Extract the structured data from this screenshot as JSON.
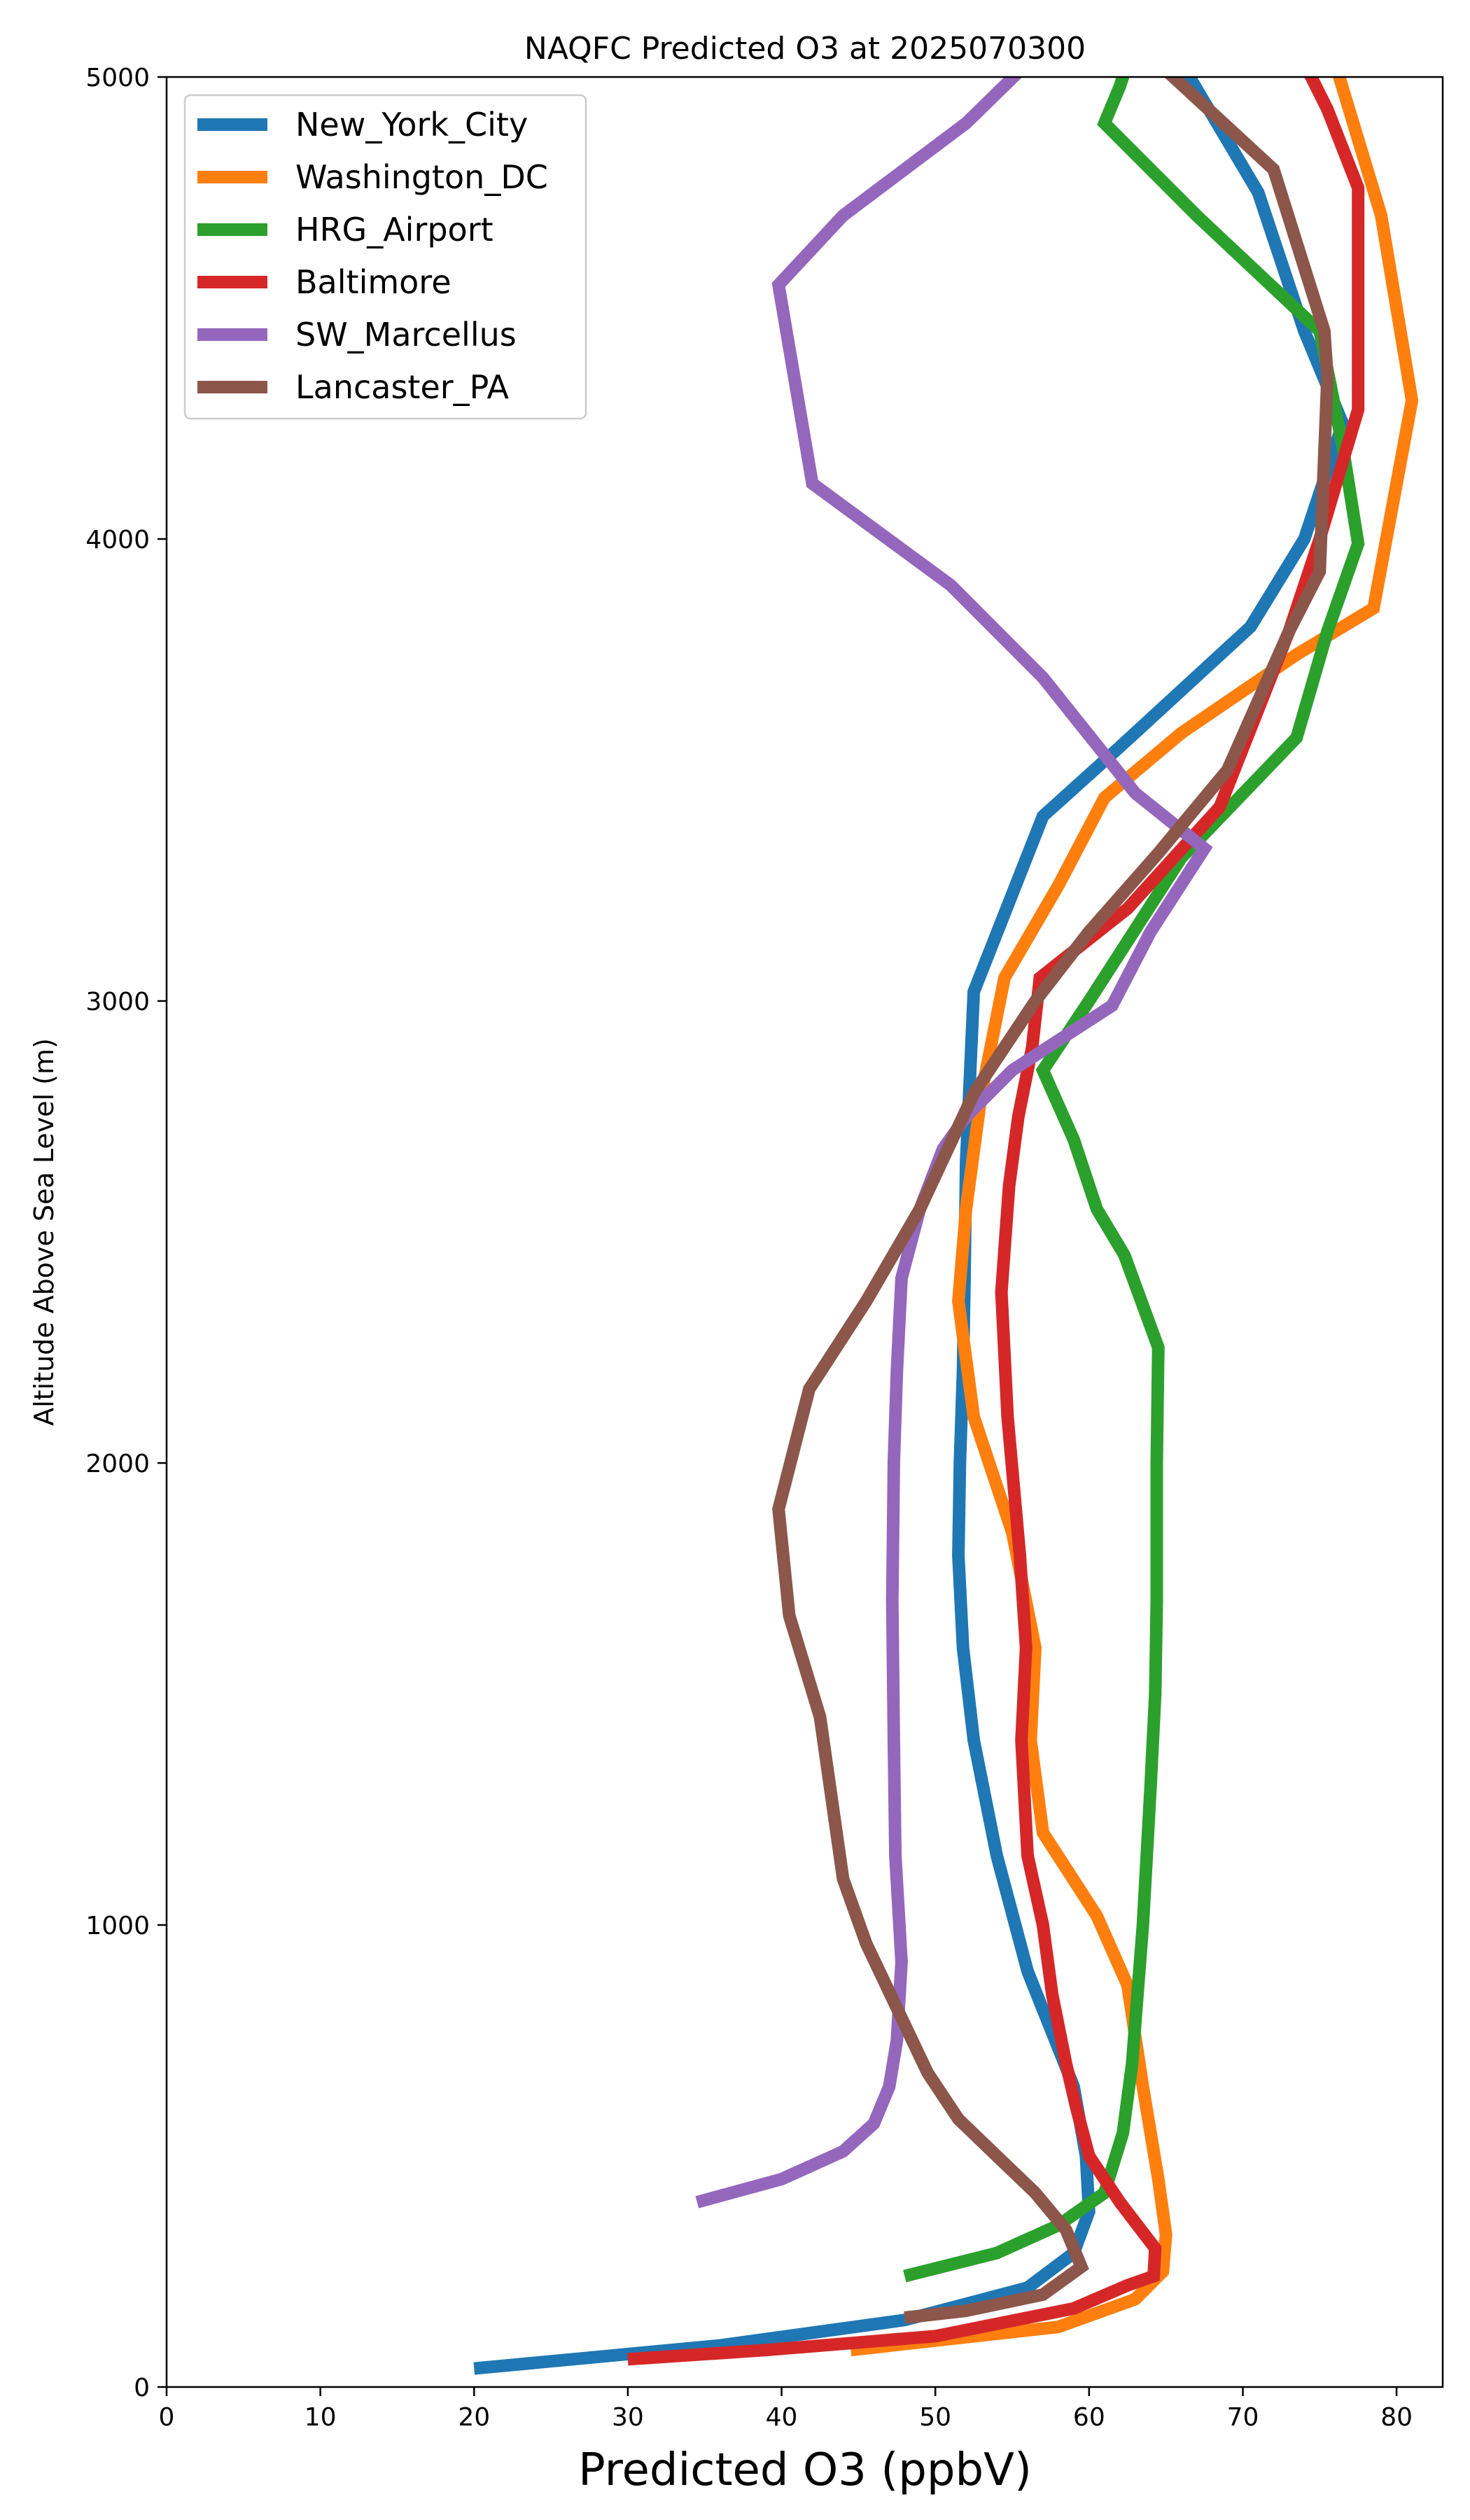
{
  "chart_data": {
    "type": "line",
    "title": "NAQFC Predicted O3 at 2025070300",
    "xlabel": "Predicted O3 (ppbV)",
    "ylabel": "Altitude Above Sea Level (m)",
    "xlim": [
      0,
      83
    ],
    "ylim": [
      0,
      5000
    ],
    "xticks": [
      "0",
      "10",
      "20",
      "30",
      "40",
      "50",
      "60",
      "70",
      "80"
    ],
    "yticks": [
      "0",
      "1000",
      "2000",
      "3000",
      "4000",
      "5000"
    ],
    "grid": false,
    "legend_position": "upper-left",
    "series": [
      {
        "name": "New_York_City",
        "color": "#1f77b4",
        "points": [
          [
            20,
            40
          ],
          [
            36,
            90
          ],
          [
            48,
            145
          ],
          [
            56,
            215
          ],
          [
            59,
            290
          ],
          [
            60,
            380
          ],
          [
            59.8,
            500
          ],
          [
            59,
            650
          ],
          [
            56,
            900
          ],
          [
            54,
            1150
          ],
          [
            52.5,
            1400
          ],
          [
            51.8,
            1600
          ],
          [
            51.5,
            1800
          ],
          [
            51.6,
            2000
          ],
          [
            51.8,
            2200
          ],
          [
            51.9,
            2400
          ],
          [
            52,
            2650
          ],
          [
            52.5,
            3020
          ],
          [
            57,
            3400
          ],
          [
            62,
            3550
          ],
          [
            70.5,
            3810
          ],
          [
            74,
            4000
          ],
          [
            76.5,
            4250
          ],
          [
            74,
            4450
          ],
          [
            71,
            4750
          ],
          [
            66,
            5030
          ]
        ]
      },
      {
        "name": "Washington_DC",
        "color": "#ff7f0e",
        "points": [
          [
            44.5,
            80
          ],
          [
            58,
            130
          ],
          [
            63,
            190
          ],
          [
            64.8,
            250
          ],
          [
            65,
            330
          ],
          [
            64.5,
            450
          ],
          [
            63.5,
            650
          ],
          [
            62.5,
            870
          ],
          [
            60.5,
            1020
          ],
          [
            57,
            1200
          ],
          [
            56.2,
            1400
          ],
          [
            56.5,
            1600
          ],
          [
            55,
            1850
          ],
          [
            52.5,
            2100
          ],
          [
            51.5,
            2350
          ],
          [
            52,
            2550
          ],
          [
            53,
            2800
          ],
          [
            54.5,
            3050
          ],
          [
            58,
            3250
          ],
          [
            61,
            3440
          ],
          [
            66,
            3580
          ],
          [
            73.5,
            3750
          ],
          [
            78.5,
            3850
          ],
          [
            81,
            4300
          ],
          [
            79,
            4700
          ],
          [
            76,
            5030
          ]
        ]
      },
      {
        "name": "HRG_Airport",
        "color": "#2ca02c",
        "points": [
          [
            48,
            240
          ],
          [
            54,
            290
          ],
          [
            58,
            350
          ],
          [
            61,
            420
          ],
          [
            62.2,
            550
          ],
          [
            62.8,
            700
          ],
          [
            63.5,
            1000
          ],
          [
            64,
            1300
          ],
          [
            64.3,
            1500
          ],
          [
            64.4,
            1700
          ],
          [
            64.4,
            2000
          ],
          [
            64.5,
            2250
          ],
          [
            62.3,
            2450
          ],
          [
            60.5,
            2550
          ],
          [
            59,
            2700
          ],
          [
            57,
            2850
          ],
          [
            60,
            3000
          ],
          [
            66,
            3310
          ],
          [
            73.5,
            3570
          ],
          [
            75.5,
            3800
          ],
          [
            77.5,
            3990
          ],
          [
            76.5,
            4200
          ],
          [
            75,
            4450
          ],
          [
            67,
            4700
          ],
          [
            61,
            4900
          ],
          [
            62,
            4980
          ],
          [
            62.5,
            5030
          ]
        ]
      },
      {
        "name": "Baltimore",
        "color": "#d62728",
        "points": [
          [
            30,
            60
          ],
          [
            39,
            80
          ],
          [
            50,
            110
          ],
          [
            59,
            170
          ],
          [
            62.5,
            220
          ],
          [
            64.2,
            240
          ],
          [
            64.3,
            300
          ],
          [
            62,
            400
          ],
          [
            60,
            500
          ],
          [
            59.2,
            600
          ],
          [
            58.5,
            700
          ],
          [
            57.6,
            850
          ],
          [
            57,
            1000
          ],
          [
            56,
            1150
          ],
          [
            55.6,
            1400
          ],
          [
            55.9,
            1600
          ],
          [
            55.5,
            1800
          ],
          [
            54.7,
            2100
          ],
          [
            54.3,
            2370
          ],
          [
            54.8,
            2600
          ],
          [
            55.4,
            2750
          ],
          [
            56.3,
            2900
          ],
          [
            56.8,
            3050
          ],
          [
            62.5,
            3200
          ],
          [
            68.5,
            3420
          ],
          [
            73,
            3800
          ],
          [
            75,
            4000
          ],
          [
            77.5,
            4280
          ],
          [
            77.5,
            4760
          ],
          [
            75.5,
            4930
          ],
          [
            74,
            5030
          ]
        ]
      },
      {
        "name": "SW_Marcellus",
        "color": "#9467bd",
        "points": [
          [
            34.5,
            400
          ],
          [
            40,
            450
          ],
          [
            44,
            510
          ],
          [
            46,
            570
          ],
          [
            47,
            650
          ],
          [
            47.5,
            750
          ],
          [
            47.8,
            920
          ],
          [
            47.4,
            1150
          ],
          [
            47.3,
            1400
          ],
          [
            47.2,
            1700
          ],
          [
            47.3,
            2000
          ],
          [
            47.5,
            2200
          ],
          [
            47.8,
            2400
          ],
          [
            49,
            2550
          ],
          [
            50.5,
            2680
          ],
          [
            52,
            2750
          ],
          [
            55,
            2850
          ],
          [
            61.5,
            2990
          ],
          [
            64,
            3150
          ],
          [
            67.5,
            3330
          ],
          [
            63,
            3450
          ],
          [
            57,
            3700
          ],
          [
            51,
            3900
          ],
          [
            42,
            4120
          ],
          [
            39.8,
            4550
          ],
          [
            44,
            4700
          ],
          [
            52,
            4900
          ],
          [
            56,
            5030
          ]
        ]
      },
      {
        "name": "Lancaster_PA",
        "color": "#8c564b",
        "points": [
          [
            48,
            150
          ],
          [
            52,
            165
          ],
          [
            57,
            200
          ],
          [
            59.5,
            260
          ],
          [
            58.5,
            340
          ],
          [
            56.5,
            420
          ],
          [
            54,
            500
          ],
          [
            51.5,
            580
          ],
          [
            49.5,
            680
          ],
          [
            47.5,
            820
          ],
          [
            45.5,
            960
          ],
          [
            44,
            1100
          ],
          [
            42.5,
            1450
          ],
          [
            40.5,
            1670
          ],
          [
            39.8,
            1900
          ],
          [
            41.8,
            2160
          ],
          [
            45.5,
            2350
          ],
          [
            49,
            2550
          ],
          [
            52.5,
            2800
          ],
          [
            56.5,
            3000
          ],
          [
            60,
            3150
          ],
          [
            64.5,
            3320
          ],
          [
            69,
            3500
          ],
          [
            73,
            3800
          ],
          [
            75,
            3930
          ],
          [
            75.2,
            4100
          ],
          [
            75.5,
            4350
          ],
          [
            75.3,
            4450
          ],
          [
            72,
            4800
          ],
          [
            64.5,
            5030
          ]
        ]
      }
    ]
  }
}
